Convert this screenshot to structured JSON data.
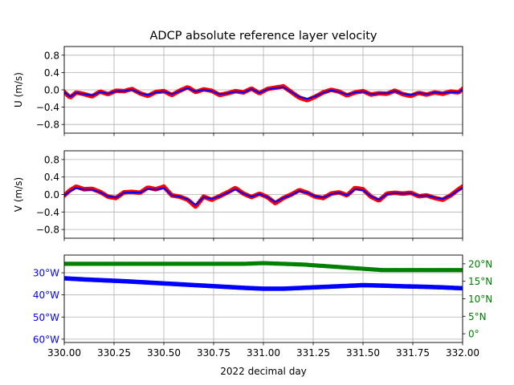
{
  "figure": {
    "title": "ADCP absolute reference layer velocity"
  },
  "colors": {
    "raw_points": "#ff0000",
    "smoothed_line": "#0000ff",
    "longitude": "#0000ff",
    "latitude": "#008000",
    "grid": "#b0b0b0",
    "axes": "#000000"
  },
  "chart_data": [
    {
      "type": "line",
      "ylabel": "U (m/s)",
      "xlim": [
        330.0,
        332.0
      ],
      "ylim": [
        -1.0,
        1.0
      ],
      "yticks": [
        -0.8,
        -0.4,
        0.0,
        0.4,
        0.8
      ],
      "ytick_labels": [
        "−0.8",
        "−0.4",
        "0.0",
        "0.4",
        "0.8"
      ],
      "grid": true,
      "x": [
        330.0,
        330.03,
        330.06,
        330.1,
        330.14,
        330.18,
        330.22,
        330.26,
        330.3,
        330.34,
        330.38,
        330.42,
        330.46,
        330.5,
        330.54,
        330.58,
        330.62,
        330.66,
        330.7,
        330.74,
        330.78,
        330.82,
        330.86,
        330.9,
        330.94,
        330.98,
        331.02,
        331.06,
        331.1,
        331.14,
        331.18,
        331.22,
        331.26,
        331.3,
        331.34,
        331.38,
        331.42,
        331.46,
        331.5,
        331.54,
        331.58,
        331.62,
        331.66,
        331.7,
        331.74,
        331.78,
        331.82,
        331.86,
        331.9,
        331.94,
        331.98,
        332.0
      ],
      "series": [
        {
          "style": "points",
          "values": [
            -0.05,
            -0.18,
            -0.06,
            -0.1,
            -0.15,
            -0.04,
            -0.1,
            -0.02,
            -0.03,
            0.02,
            -0.08,
            -0.14,
            -0.05,
            -0.03,
            -0.12,
            -0.02,
            0.06,
            -0.05,
            0.01,
            -0.02,
            -0.12,
            -0.08,
            -0.03,
            -0.06,
            0.03,
            -0.08,
            0.02,
            0.05,
            0.08,
            -0.05,
            -0.18,
            -0.24,
            -0.16,
            -0.06,
            0.0,
            -0.04,
            -0.13,
            -0.06,
            -0.03,
            -0.11,
            -0.08,
            -0.09,
            -0.02,
            -0.1,
            -0.14,
            -0.07,
            -0.11,
            -0.06,
            -0.09,
            -0.04,
            -0.06,
            0.02
          ]
        },
        {
          "style": "line",
          "values": [
            -0.05,
            -0.16,
            -0.07,
            -0.1,
            -0.13,
            -0.05,
            -0.09,
            -0.03,
            -0.03,
            0.01,
            -0.08,
            -0.12,
            -0.06,
            -0.04,
            -0.1,
            -0.03,
            0.04,
            -0.04,
            0.0,
            -0.03,
            -0.1,
            -0.08,
            -0.04,
            -0.06,
            0.02,
            -0.07,
            0.01,
            0.04,
            0.06,
            -0.05,
            -0.16,
            -0.21,
            -0.15,
            -0.07,
            -0.01,
            -0.05,
            -0.11,
            -0.06,
            -0.04,
            -0.1,
            -0.08,
            -0.08,
            -0.03,
            -0.09,
            -0.12,
            -0.07,
            -0.1,
            -0.06,
            -0.08,
            -0.05,
            -0.06,
            0.01
          ]
        }
      ]
    },
    {
      "type": "line",
      "ylabel": "V (m/s)",
      "xlim": [
        330.0,
        332.0
      ],
      "ylim": [
        -1.0,
        1.0
      ],
      "yticks": [
        -0.8,
        -0.4,
        0.0,
        0.4,
        0.8
      ],
      "ytick_labels": [
        "−0.8",
        "−0.4",
        "0.0",
        "0.4",
        "0.8"
      ],
      "grid": true,
      "x": [
        330.0,
        330.03,
        330.06,
        330.1,
        330.14,
        330.18,
        330.22,
        330.26,
        330.3,
        330.34,
        330.38,
        330.42,
        330.46,
        330.5,
        330.54,
        330.58,
        330.62,
        330.66,
        330.7,
        330.74,
        330.78,
        330.82,
        330.86,
        330.9,
        330.94,
        330.98,
        331.02,
        331.06,
        331.1,
        331.14,
        331.18,
        331.22,
        331.26,
        331.3,
        331.34,
        331.38,
        331.42,
        331.46,
        331.5,
        331.54,
        331.58,
        331.62,
        331.66,
        331.7,
        331.74,
        331.78,
        331.82,
        331.86,
        331.9,
        331.94,
        331.98,
        332.0
      ],
      "series": [
        {
          "style": "points",
          "values": [
            -0.02,
            0.1,
            0.18,
            0.12,
            0.13,
            0.06,
            -0.05,
            -0.08,
            0.05,
            0.06,
            0.04,
            0.16,
            0.12,
            0.18,
            -0.02,
            -0.05,
            -0.12,
            -0.28,
            -0.05,
            -0.12,
            -0.04,
            0.05,
            0.15,
            0.02,
            -0.06,
            0.02,
            -0.06,
            -0.2,
            -0.08,
            0.0,
            0.1,
            0.04,
            -0.05,
            -0.08,
            0.02,
            0.05,
            -0.02,
            0.15,
            0.12,
            -0.05,
            -0.14,
            0.02,
            0.04,
            0.02,
            0.04,
            -0.04,
            -0.02,
            -0.08,
            -0.12,
            -0.02,
            0.12,
            0.18
          ]
        },
        {
          "style": "line",
          "values": [
            -0.02,
            0.08,
            0.15,
            0.11,
            0.11,
            0.05,
            -0.04,
            -0.07,
            0.04,
            0.05,
            0.04,
            0.13,
            0.11,
            0.15,
            -0.02,
            -0.05,
            -0.11,
            -0.24,
            -0.06,
            -0.1,
            -0.04,
            0.04,
            0.12,
            0.02,
            -0.05,
            0.01,
            -0.06,
            -0.17,
            -0.08,
            -0.01,
            0.08,
            0.04,
            -0.04,
            -0.07,
            0.01,
            0.04,
            -0.02,
            0.12,
            0.1,
            -0.04,
            -0.12,
            0.01,
            0.03,
            0.02,
            0.03,
            -0.03,
            -0.02,
            -0.07,
            -0.1,
            -0.02,
            0.1,
            0.15
          ]
        }
      ]
    },
    {
      "type": "line",
      "xlabel": "2022 decimal day",
      "xlim": [
        330.0,
        332.0
      ],
      "xticks": [
        330.0,
        330.25,
        330.5,
        330.75,
        331.0,
        331.25,
        331.5,
        331.75,
        332.0
      ],
      "xtick_labels": [
        "330.00",
        "330.25",
        "330.50",
        "330.75",
        "331.00",
        "331.25",
        "331.50",
        "331.75",
        "332.00"
      ],
      "grid": true,
      "left_axis": {
        "ylim": [
          -61.5,
          -22.0
        ],
        "yticks": [
          -30,
          -40,
          -50,
          -60
        ],
        "ytick_labels": [
          "30°W",
          "40°W",
          "50°W",
          "60°W"
        ]
      },
      "right_axis": {
        "ylim": [
          -2.5,
          22.5
        ],
        "yticks": [
          0,
          5,
          10,
          15,
          20
        ],
        "ytick_labels": [
          "0°",
          "5°N",
          "10°N",
          "15°N",
          "20°N"
        ]
      },
      "x": [
        330.0,
        330.1,
        330.2,
        330.3,
        330.4,
        330.5,
        330.6,
        330.7,
        330.8,
        330.9,
        331.0,
        331.1,
        331.2,
        331.3,
        331.4,
        331.5,
        331.6,
        331.7,
        331.8,
        331.9,
        332.0
      ],
      "series": [
        {
          "axis": "left",
          "values": [
            -32.5,
            -33.0,
            -33.4,
            -33.8,
            -34.3,
            -34.8,
            -35.3,
            -35.8,
            -36.3,
            -36.8,
            -37.2,
            -37.2,
            -36.8,
            -36.4,
            -36.0,
            -35.6,
            -35.8,
            -36.1,
            -36.3,
            -36.6,
            -37.0
          ]
        },
        {
          "axis": "right",
          "values": [
            20.0,
            20.0,
            20.0,
            20.0,
            20.0,
            20.0,
            20.0,
            20.0,
            20.0,
            20.0,
            20.2,
            20.0,
            19.8,
            19.4,
            19.0,
            18.6,
            18.2,
            18.2,
            18.2,
            18.2,
            18.2
          ]
        }
      ]
    }
  ]
}
